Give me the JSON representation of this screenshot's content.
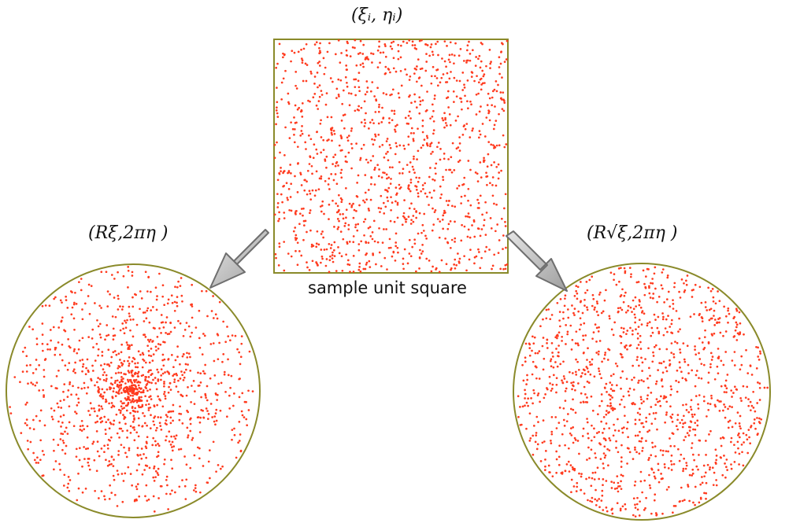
{
  "labels": {
    "square": "(ξᵢ, ηᵢ)",
    "left_mapping": "(Rξ,2πη )",
    "right_mapping": "(R√ξ,2πη )",
    "square_caption": "sample unit square"
  },
  "colors": {
    "point": "#ff3b1f",
    "border": "#8a8a2a",
    "arrow_fill": "#c9c9c9",
    "arrow_stroke": "#6f6f6f"
  },
  "sampling": {
    "square_points": 1200,
    "left_circle_points": 1200,
    "right_circle_points": 1200,
    "left_distribution": "linear radius",
    "right_distribution": "square-root radius"
  },
  "icons": {
    "left_arrow": "down-left-arrow",
    "right_arrow": "down-right-arrow"
  }
}
